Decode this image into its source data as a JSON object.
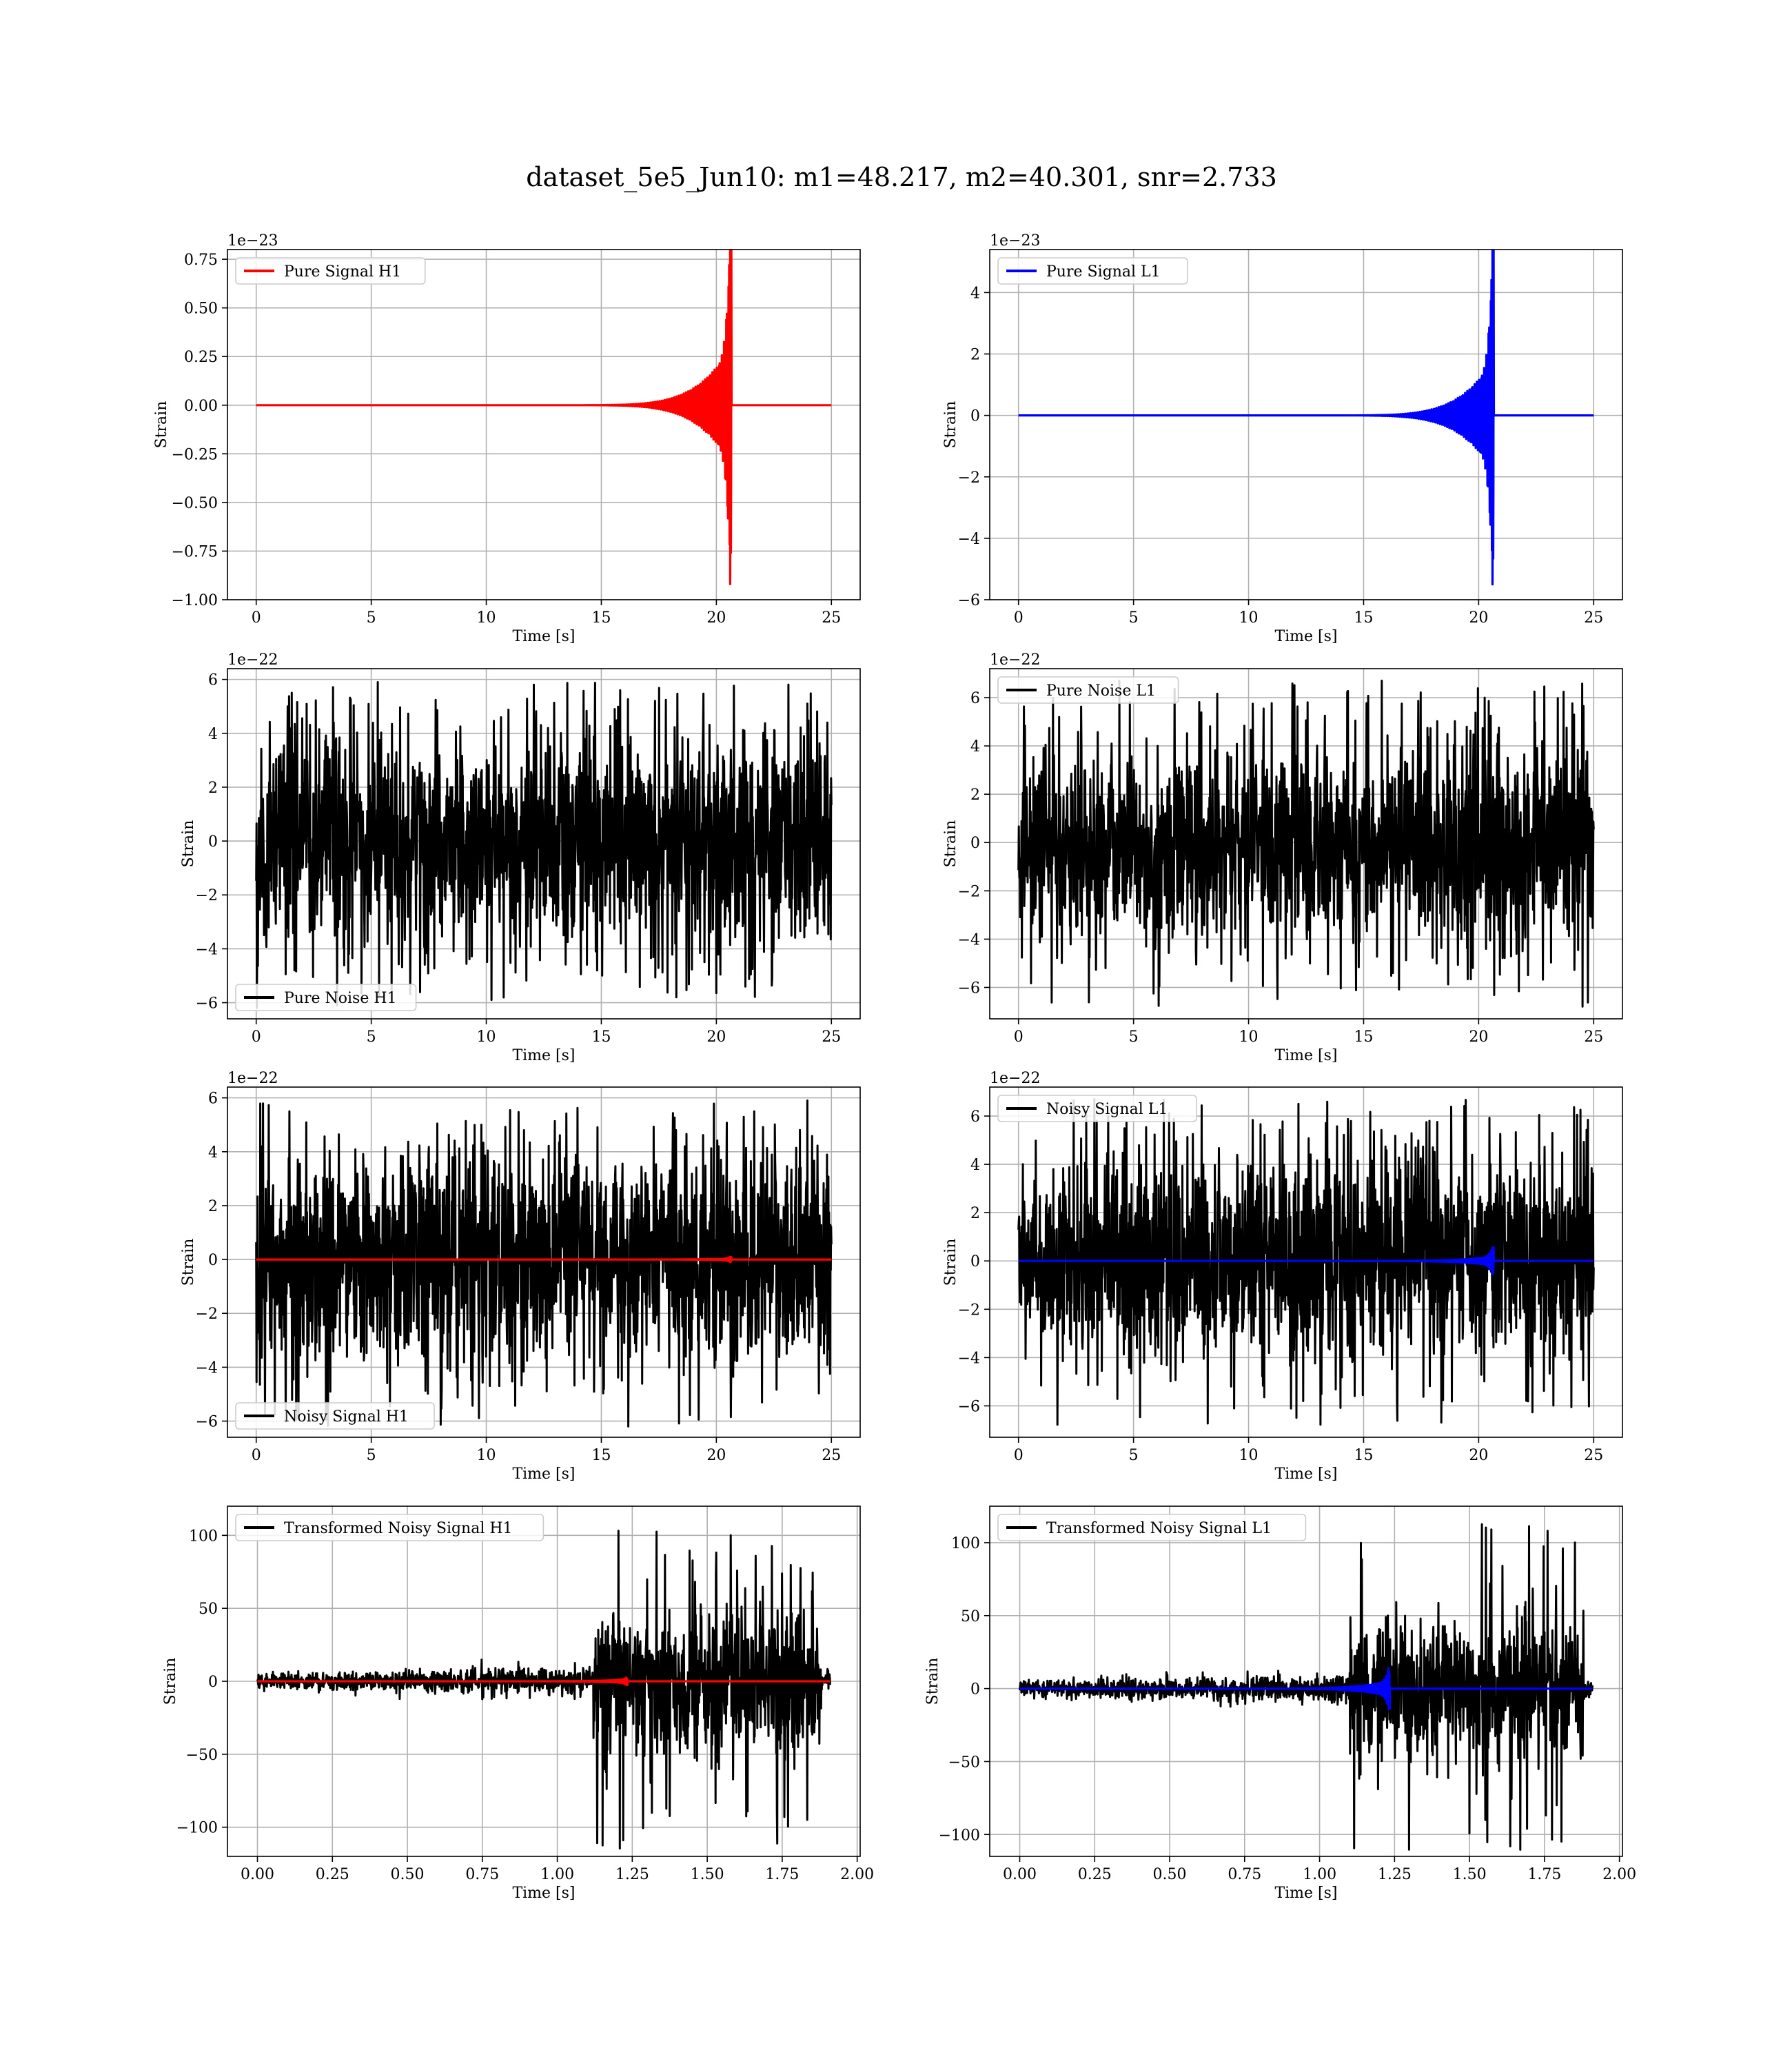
{
  "figure": {
    "title": "dataset_5e5_Jun10: m1=48.217, m2=40.301, snr=2.733"
  },
  "colors": {
    "h1_signal": "#ff0000",
    "l1_signal": "#0000ff",
    "noise": "#000000",
    "grid": "#b0b0b0"
  },
  "chart_data": [
    {
      "id": "pure-signal-h1",
      "type": "line",
      "xlabel": "Time [s]",
      "ylabel": "Strain",
      "offset_text": "1e−23",
      "legend_location": "upper-left",
      "xlim": [
        -1.25,
        26.25
      ],
      "ylim": [
        -1.0,
        0.8
      ],
      "grid": true,
      "xticks": [
        0,
        5,
        10,
        15,
        20,
        25
      ],
      "xtick_labels": [
        "0",
        "5",
        "10",
        "15",
        "20",
        "25"
      ],
      "yticks": [
        -1.0,
        -0.75,
        -0.5,
        -0.25,
        0.0,
        0.25,
        0.5,
        0.75
      ],
      "ytick_labels": [
        "−1.00",
        "−0.75",
        "−0.50",
        "−0.25",
        "0.00",
        "0.25",
        "0.50",
        "0.75"
      ],
      "series": [
        {
          "name": "Pure Signal H1",
          "kind": "chirp",
          "color": "#ff0000",
          "duration": 25.0,
          "t_merger": 20.6,
          "peak_pos": 0.88,
          "peak_neg": -0.92,
          "plateau": 0.3,
          "t_onset": 18.0
        }
      ]
    },
    {
      "id": "pure-signal-l1",
      "type": "line",
      "xlabel": "Time [s]",
      "ylabel": "Strain",
      "offset_text": "1e−23",
      "legend_location": "upper-left",
      "xlim": [
        -1.25,
        26.25
      ],
      "ylim": [
        -6,
        5.4
      ],
      "grid": true,
      "xticks": [
        0,
        5,
        10,
        15,
        20,
        25
      ],
      "xtick_labels": [
        "0",
        "5",
        "10",
        "15",
        "20",
        "25"
      ],
      "yticks": [
        -6,
        -4,
        -2,
        0,
        2,
        4
      ],
      "ytick_labels": [
        "−6",
        "−4",
        "−2",
        "0",
        "2",
        "4"
      ],
      "series": [
        {
          "name": "Pure Signal L1",
          "kind": "chirp",
          "color": "#0000ff",
          "duration": 25.0,
          "t_merger": 20.6,
          "peak_pos": 5.4,
          "peak_neg": -5.5,
          "plateau": 1.8,
          "t_onset": 18.0
        }
      ]
    },
    {
      "id": "pure-noise-h1",
      "type": "line",
      "xlabel": "Time [s]",
      "ylabel": "Strain",
      "offset_text": "1e−22",
      "legend_location": "lower-left",
      "xlim": [
        -1.25,
        26.25
      ],
      "ylim": [
        -6.6,
        6.4
      ],
      "grid": true,
      "xticks": [
        0,
        5,
        10,
        15,
        20,
        25
      ],
      "xtick_labels": [
        "0",
        "5",
        "10",
        "15",
        "20",
        "25"
      ],
      "yticks": [
        -6,
        -4,
        -2,
        0,
        2,
        4,
        6
      ],
      "ytick_labels": [
        "−6",
        "−4",
        "−2",
        "0",
        "2",
        "4",
        "6"
      ],
      "series": [
        {
          "name": "Pure Noise H1",
          "kind": "noise",
          "color": "#000000",
          "duration": 25.0,
          "band": 3.6,
          "max": 5.9,
          "min": -6.2
        }
      ]
    },
    {
      "id": "pure-noise-l1",
      "type": "line",
      "xlabel": "Time [s]",
      "ylabel": "Strain",
      "offset_text": "1e−22",
      "legend_location": "upper-left",
      "xlim": [
        -1.25,
        26.25
      ],
      "ylim": [
        -7.3,
        7.2
      ],
      "grid": true,
      "xticks": [
        0,
        5,
        10,
        15,
        20,
        25
      ],
      "xtick_labels": [
        "0",
        "5",
        "10",
        "15",
        "20",
        "25"
      ],
      "yticks": [
        -6,
        -4,
        -2,
        0,
        2,
        4,
        6
      ],
      "ytick_labels": [
        "−6",
        "−4",
        "−2",
        "0",
        "2",
        "4",
        "6"
      ],
      "series": [
        {
          "name": "Pure Noise L1",
          "kind": "noise",
          "color": "#000000",
          "duration": 25.0,
          "band": 3.7,
          "max": 6.7,
          "min": -6.8
        }
      ]
    },
    {
      "id": "noisy-signal-h1",
      "type": "line",
      "xlabel": "Time [s]",
      "ylabel": "Strain",
      "offset_text": "1e−22",
      "legend_location": "lower-left",
      "xlim": [
        -1.25,
        26.25
      ],
      "ylim": [
        -6.6,
        6.4
      ],
      "grid": true,
      "xticks": [
        0,
        5,
        10,
        15,
        20,
        25
      ],
      "xtick_labels": [
        "0",
        "5",
        "10",
        "15",
        "20",
        "25"
      ],
      "yticks": [
        -6,
        -4,
        -2,
        0,
        2,
        4,
        6
      ],
      "ytick_labels": [
        "−6",
        "−4",
        "−2",
        "0",
        "2",
        "4",
        "6"
      ],
      "series": [
        {
          "name": "Noisy Signal H1",
          "kind": "noise",
          "color": "#000000",
          "duration": 25.0,
          "band": 3.6,
          "max": 5.9,
          "min": -6.2
        },
        {
          "name": "",
          "kind": "chirp",
          "color": "#ff0000",
          "duration": 25.0,
          "t_merger": 20.6,
          "peak_pos": 0.09,
          "peak_neg": -0.09,
          "plateau": 0.03,
          "t_onset": 18.0
        }
      ]
    },
    {
      "id": "noisy-signal-l1",
      "type": "line",
      "xlabel": "Time [s]",
      "ylabel": "Strain",
      "offset_text": "1e−22",
      "legend_location": "upper-left",
      "xlim": [
        -1.25,
        26.25
      ],
      "ylim": [
        -7.3,
        7.2
      ],
      "grid": true,
      "xticks": [
        0,
        5,
        10,
        15,
        20,
        25
      ],
      "xtick_labels": [
        "0",
        "5",
        "10",
        "15",
        "20",
        "25"
      ],
      "yticks": [
        -6,
        -4,
        -2,
        0,
        2,
        4,
        6
      ],
      "ytick_labels": [
        "−6",
        "−4",
        "−2",
        "0",
        "2",
        "4",
        "6"
      ],
      "series": [
        {
          "name": "Noisy Signal L1",
          "kind": "noise",
          "color": "#000000",
          "duration": 25.0,
          "band": 3.7,
          "max": 6.7,
          "min": -6.8
        },
        {
          "name": "",
          "kind": "chirp",
          "color": "#0000ff",
          "duration": 25.0,
          "t_merger": 20.6,
          "peak_pos": 0.55,
          "peak_neg": -0.55,
          "plateau": 0.18,
          "t_onset": 18.0
        }
      ]
    },
    {
      "id": "transformed-noisy-signal-h1",
      "type": "line",
      "xlabel": "Time [s]",
      "ylabel": "Strain",
      "offset_text": "",
      "legend_location": "upper-left",
      "xlim": [
        -0.1,
        2.01
      ],
      "ylim": [
        -120,
        120
      ],
      "grid": true,
      "xticks": [
        0,
        0.25,
        0.5,
        0.75,
        1.0,
        1.25,
        1.5,
        1.75,
        2.0
      ],
      "xtick_labels": [
        "0.00",
        "0.25",
        "0.50",
        "0.75",
        "1.00",
        "1.25",
        "1.50",
        "1.75",
        "2.00"
      ],
      "yticks": [
        -100,
        -50,
        0,
        50,
        100
      ],
      "ytick_labels": [
        "−100",
        "−50",
        "0",
        "50",
        "100"
      ],
      "series": [
        {
          "name": "Transformed Noisy Signal H1",
          "kind": "whitened",
          "color": "#000000",
          "duration": 1.91,
          "t_jump": 1.12,
          "band_before": 7,
          "band_after": 45,
          "max": 106,
          "min": -117
        },
        {
          "name": "",
          "kind": "chirp",
          "color": "#ff0000",
          "duration": 1.91,
          "t_merger": 1.23,
          "peak_pos": 2.5,
          "peak_neg": -2.5,
          "plateau": 1.2,
          "t_onset": 1.05,
          "t_end": 1.91
        }
      ]
    },
    {
      "id": "transformed-noisy-signal-l1",
      "type": "line",
      "xlabel": "Time [s]",
      "ylabel": "Strain",
      "offset_text": "",
      "legend_location": "upper-left",
      "xlim": [
        -0.1,
        2.01
      ],
      "ylim": [
        -115,
        125
      ],
      "grid": true,
      "xticks": [
        0,
        0.25,
        0.5,
        0.75,
        1.0,
        1.25,
        1.5,
        1.75,
        2.0
      ],
      "xtick_labels": [
        "0.00",
        "0.25",
        "0.50",
        "0.75",
        "1.00",
        "1.25",
        "1.50",
        "1.75",
        "2.00"
      ],
      "yticks": [
        -100,
        -50,
        0,
        50,
        100
      ],
      "ytick_labels": [
        "−100",
        "−50",
        "0",
        "50",
        "100"
      ],
      "series": [
        {
          "name": "Transformed Noisy Signal L1",
          "kind": "whitened",
          "color": "#000000",
          "duration": 1.91,
          "t_jump": 1.1,
          "band_before": 7,
          "band_after": 45,
          "max": 117,
          "min": -113
        },
        {
          "name": "",
          "kind": "chirp",
          "color": "#0000ff",
          "duration": 1.91,
          "t_merger": 1.23,
          "peak_pos": 14,
          "peak_neg": -14,
          "plateau": 5,
          "t_onset": 1.05,
          "t_end": 1.91
        }
      ]
    }
  ]
}
